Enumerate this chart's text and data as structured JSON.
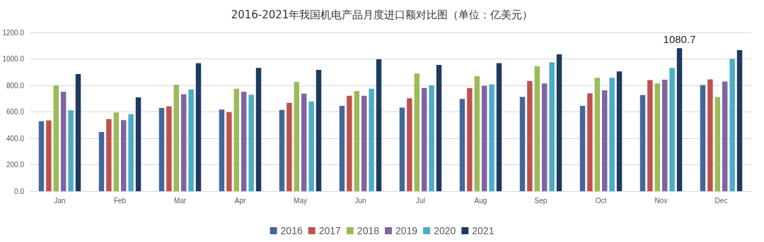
{
  "chart_data": {
    "type": "bar",
    "title": "2016-2021年我国机电产品月度进口额对比图（单位：亿美元）",
    "categories": [
      "Jan",
      "Feb",
      "Mar",
      "Apr",
      "May",
      "Jun",
      "Jul",
      "Aug",
      "Sep",
      "Oct",
      "Nov",
      "Dec"
    ],
    "series": [
      {
        "name": "2016",
        "color": "#44679a",
        "values": [
          530,
          448,
          630,
          618,
          615,
          645,
          632,
          697,
          713,
          645,
          727,
          803
        ]
      },
      {
        "name": "2017",
        "color": "#c0504d",
        "values": [
          535,
          545,
          642,
          597,
          668,
          722,
          703,
          780,
          833,
          740,
          840,
          845
        ]
      },
      {
        "name": "2018",
        "color": "#9bbb59",
        "values": [
          800,
          595,
          805,
          775,
          825,
          758,
          890,
          870,
          945,
          858,
          815,
          712
        ]
      },
      {
        "name": "2019",
        "color": "#8064a2",
        "values": [
          752,
          537,
          733,
          752,
          738,
          722,
          780,
          798,
          815,
          763,
          843,
          830
        ]
      },
      {
        "name": "2020",
        "color": "#4bacc6",
        "values": [
          612,
          583,
          770,
          730,
          678,
          775,
          800,
          808,
          975,
          858,
          932,
          1000
        ]
      },
      {
        "name": "2021",
        "color": "#1f3a5f",
        "values": [
          885,
          710,
          968,
          932,
          918,
          998,
          955,
          968,
          1035,
          905,
          1080.7,
          1067
        ],
        "value_labels": [
          null,
          null,
          null,
          null,
          null,
          null,
          null,
          null,
          null,
          null,
          "1080.7",
          null
        ]
      }
    ],
    "ylim": [
      0,
      1200
    ],
    "yticks": [
      {
        "value": 0,
        "label": "0.0"
      },
      {
        "value": 200,
        "label": "200.0"
      },
      {
        "value": 400,
        "label": "400.0"
      },
      {
        "value": 600,
        "label": "600.0"
      },
      {
        "value": 800,
        "label": "800.0"
      },
      {
        "value": 1000,
        "label": "1000.0"
      },
      {
        "value": 1200,
        "label": "1200.0"
      }
    ],
    "grid": "y",
    "legend": "bottom"
  }
}
